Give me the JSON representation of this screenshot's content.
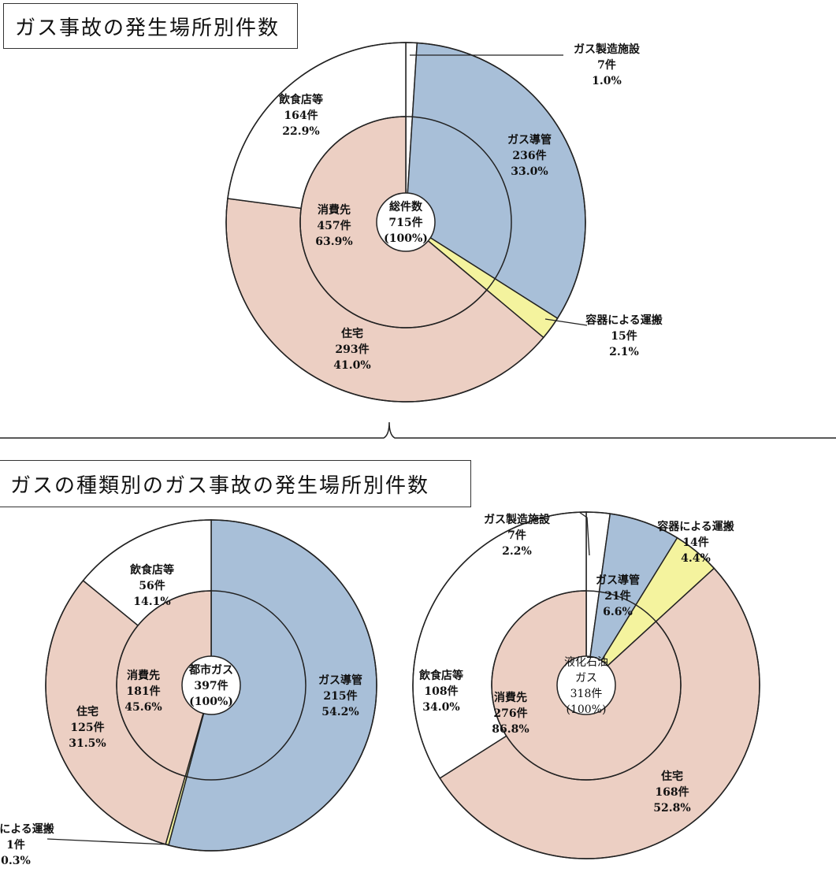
{
  "titles": {
    "top": "ガス事故の発生場所別件数",
    "bottom": "ガスの種類別のガス事故の発生場所別件数"
  },
  "colors": {
    "pipe": "#a8bfd8",
    "consumer": "#eccfc3",
    "container": "#f4f39e",
    "restaurant": "#ffffff",
    "facility": "#ffffff",
    "stroke": "#222222"
  },
  "chart_data": [
    {
      "type": "pie",
      "center": [
        "総件数",
        "715件",
        "(100%)"
      ],
      "outer": [
        {
          "key": "facility",
          "name": "ガス製造施設",
          "count": "7件",
          "pct": "1.0%",
          "value": 1.0
        },
        {
          "key": "pipe",
          "name": "ガス導管",
          "count": "236件",
          "pct": "33.0%",
          "value": 33.0
        },
        {
          "key": "container",
          "name": "容器による運搬",
          "count": "15件",
          "pct": "2.1%",
          "value": 2.1
        },
        {
          "key": "consumer",
          "name": "住宅",
          "count": "293件",
          "pct": "41.0%",
          "value": 41.0
        },
        {
          "key": "restaurant",
          "name": "飲食店等",
          "count": "164件",
          "pct": "22.9%",
          "value": 22.9
        }
      ],
      "inner": {
        "name": "消費先",
        "count": "457件",
        "pct": "63.9%",
        "value": 63.9
      }
    },
    {
      "type": "pie",
      "center": [
        "都市ガス",
        "397件",
        "(100%)"
      ],
      "outer": [
        {
          "key": "pipe",
          "name": "ガス導管",
          "count": "215件",
          "pct": "54.2%",
          "value": 54.2
        },
        {
          "key": "container",
          "name": "容器による運搬",
          "count": "1件",
          "pct": "0.3%",
          "value": 0.3
        },
        {
          "key": "consumer",
          "name": "住宅",
          "count": "125件",
          "pct": "31.5%",
          "value": 31.5
        },
        {
          "key": "restaurant",
          "name": "飲食店等",
          "count": "56件",
          "pct": "14.1%",
          "value": 14.1
        }
      ],
      "inner": {
        "name": "消費先",
        "count": "181件",
        "pct": "45.6%",
        "value": 45.6
      }
    },
    {
      "type": "pie",
      "center": [
        "液化石油",
        "ガス",
        "318件",
        "(100%)"
      ],
      "outer": [
        {
          "key": "facility",
          "name": "ガス製造施設",
          "count": "7件",
          "pct": "2.2%",
          "value": 2.2
        },
        {
          "key": "pipe",
          "name": "ガス導管",
          "count": "21件",
          "pct": "6.6%",
          "value": 6.6
        },
        {
          "key": "container",
          "name": "容器による運搬",
          "count": "14件",
          "pct": "4.4%",
          "value": 4.4
        },
        {
          "key": "consumer",
          "name": "住宅",
          "count": "168件",
          "pct": "52.8%",
          "value": 52.8
        },
        {
          "key": "restaurant",
          "name": "飲食店等",
          "count": "108件",
          "pct": "34.0%",
          "value": 34.0
        }
      ],
      "inner": {
        "name": "消費先",
        "count": "276件",
        "pct": "86.8%",
        "value": 86.8
      }
    }
  ]
}
